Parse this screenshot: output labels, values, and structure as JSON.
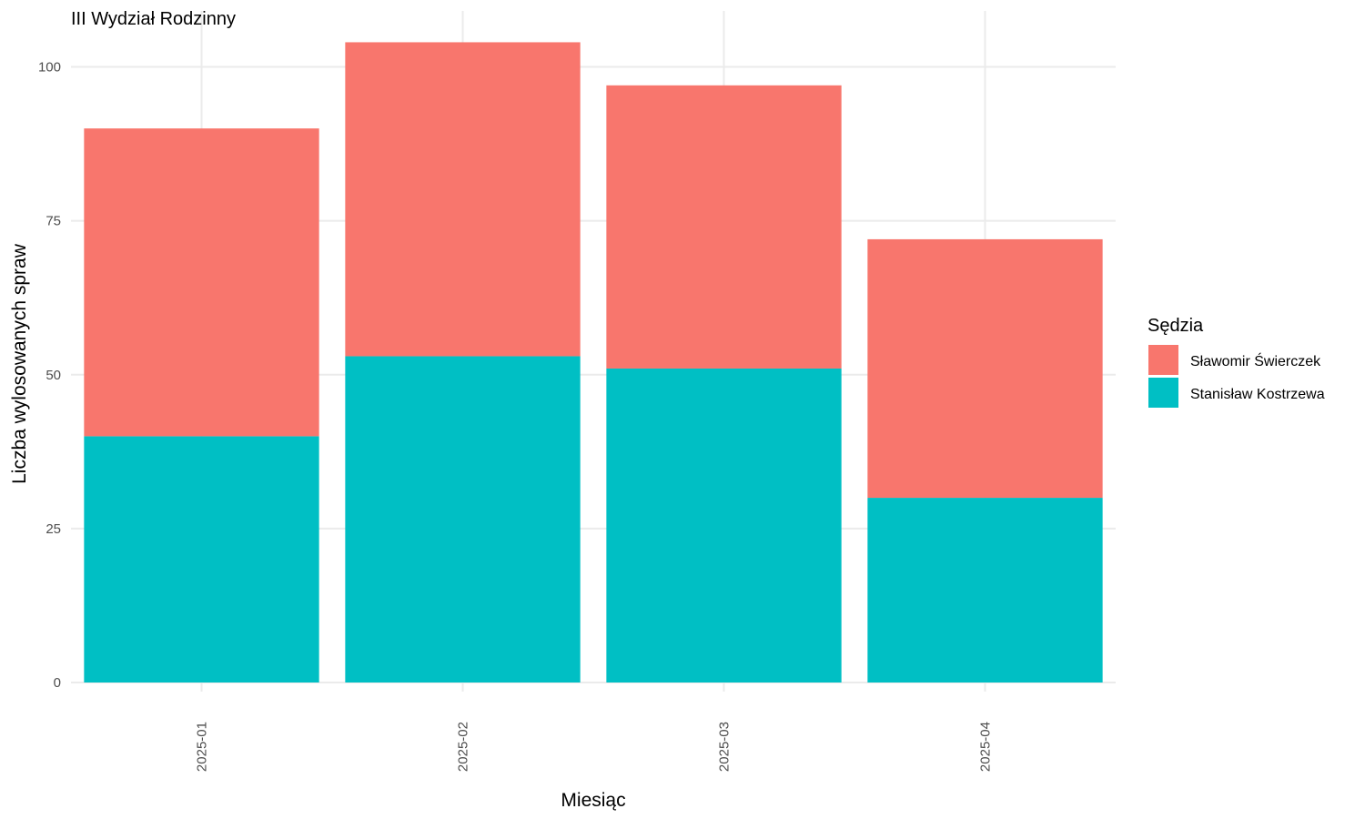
{
  "chart_data": {
    "type": "bar",
    "stacked": true,
    "title": "III Wydział Rodzinny",
    "xlabel": "Miesiąc",
    "ylabel": "Liczba wylosowanych spraw",
    "categories": [
      "2025-01",
      "2025-02",
      "2025-03",
      "2025-04"
    ],
    "series": [
      {
        "name": "Stanisław Kostrzewa",
        "color": "#00BFC4",
        "values": [
          40,
          53,
          51,
          30
        ]
      },
      {
        "name": "Sławomir Świerczek",
        "color": "#F8766D",
        "values": [
          50,
          51,
          46,
          42
        ]
      }
    ],
    "legend": {
      "title": "Sędzia",
      "order": [
        "Sławomir Świerczek",
        "Stanisław Kostrzewa"
      ],
      "placement": "right"
    },
    "ylim": [
      0,
      104
    ],
    "yticks": [
      0,
      25,
      50,
      75,
      100
    ],
    "grid": true
  }
}
